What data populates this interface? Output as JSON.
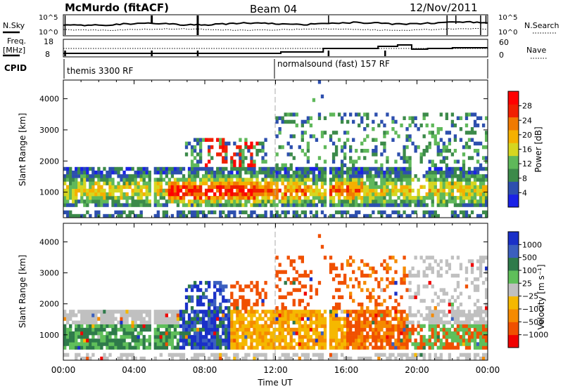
{
  "header": {
    "station": "McMurdo (fitACF)",
    "beam": "Beam 04",
    "date": "12/Nov/2011"
  },
  "nsky_panel": {
    "left_label": "N.Sky",
    "right_label": "N.Search",
    "left_ticks": [
      "10^5",
      "10^0"
    ],
    "right_ticks": [
      "10^5",
      "10^0"
    ]
  },
  "freq_panel": {
    "left_label_1": "Freq.",
    "left_label_2": "[MHz]",
    "right_label": "Nave",
    "left_ticks": [
      "18",
      "8"
    ],
    "right_ticks": [
      "60",
      "0"
    ]
  },
  "cpid_panel": {
    "label": "CPID",
    "mode_1": "themis 3300 RF",
    "mode_2": "normalsound (fast) 157 RF"
  },
  "colors": {
    "power_scale": [
      "#1a22e6",
      "#2d4fae",
      "#3c8a4a",
      "#5fb85a",
      "#d6d620",
      "#f5b000",
      "#f07a00",
      "#f02000",
      "#ff0000"
    ],
    "velocity_scale": [
      "#1a30c8",
      "#3b5fbf",
      "#2e7a4a",
      "#5fbf5a",
      "#c0c0c0",
      "#f5b800",
      "#f58a00",
      "#f05000",
      "#f00000"
    ]
  },
  "chart_data": [
    {
      "type": "heatmap",
      "panel": "power",
      "ylabel": "Slant Range [km]",
      "ylim": [
        180,
        4600
      ],
      "y_ticks": [
        "1000",
        "2000",
        "3000",
        "4000"
      ],
      "x_range_hours": [
        0,
        24
      ],
      "colorbar_label": "Power [dB]",
      "colorbar_ticks": [
        "4",
        "8",
        "12",
        "16",
        "20",
        "24",
        "28"
      ],
      "main_band_km": [
        500,
        1800
      ],
      "peak_power_hours": [
        6,
        11
      ]
    },
    {
      "type": "heatmap",
      "panel": "velocity",
      "ylabel": "Slant Range [km]",
      "xlabel": "Time UT",
      "ylim": [
        180,
        4600
      ],
      "y_ticks": [
        "1000",
        "2000",
        "3000",
        "4000"
      ],
      "x_ticks": [
        "00:00",
        "04:00",
        "08:00",
        "12:00",
        "16:00",
        "20:00",
        "00:00"
      ],
      "x_range_hours": [
        0,
        24
      ],
      "colorbar_label": "Velocity [m s⁻¹]",
      "colorbar_ticks": [
        "1000",
        "500",
        "100",
        "25",
        "−25",
        "−100",
        "−500",
        "−1000"
      ],
      "main_band_km": [
        500,
        1800
      ]
    }
  ]
}
